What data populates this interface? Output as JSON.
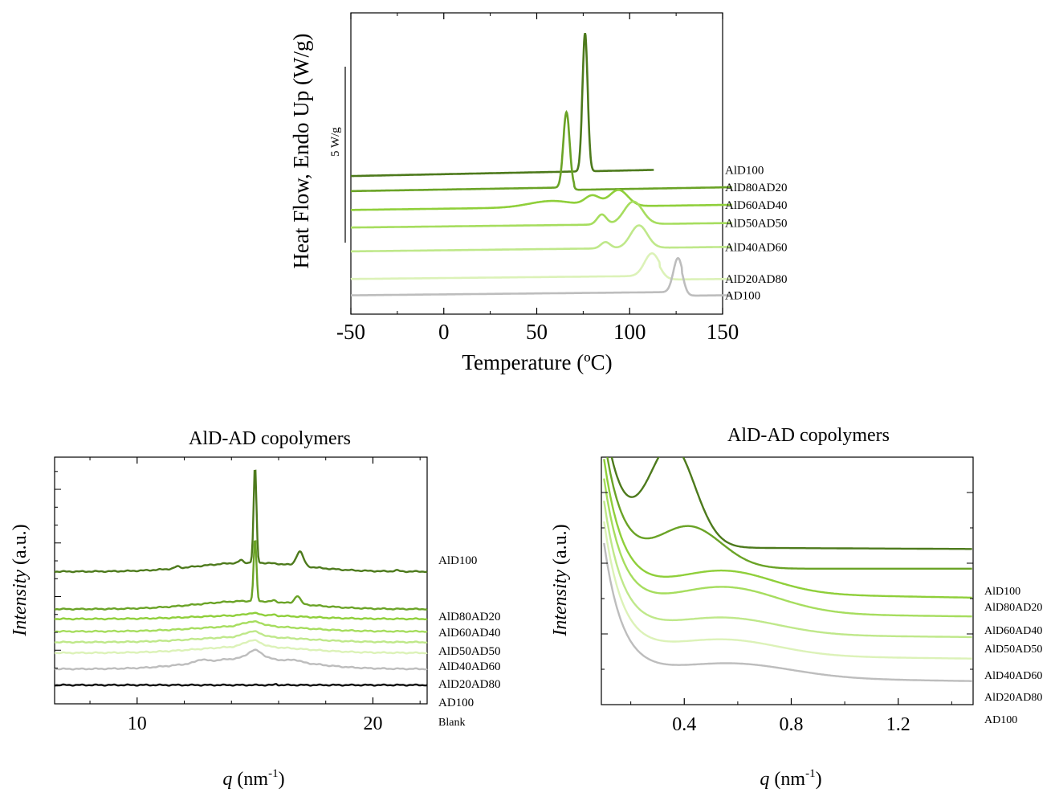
{
  "colors": {
    "AlD100": "#4d7a1c",
    "AlD80AD20": "#6aa326",
    "AlD60AD40": "#8fcf3a",
    "AlD50AD50": "#a6dd5e",
    "AlD40AD60": "#bfe88a",
    "AlD20AD80": "#dcf2b8",
    "AD100": "#bdbdbd",
    "Blank": "#111111"
  },
  "chart_data": [
    {
      "type": "line",
      "id": "dsc",
      "xlabel": "Temperature (ºC)",
      "ylabel": "Heat Flow, Endo Up (W/g)",
      "xlim": [
        -50,
        150
      ],
      "xticks": [
        -50,
        0,
        50,
        100,
        150
      ],
      "scale_bar_label": "5 W/g",
      "legend_placement": "right-of-curves",
      "series": [
        {
          "name": "AlD100",
          "baseline": 1.0,
          "slope": 0.6,
          "xmax": 113,
          "peaks": [
            [
              76,
              11.0,
              1.4
            ]
          ],
          "step": [
            80,
            0.0
          ]
        },
        {
          "name": "AlD80AD20",
          "baseline": -0.2,
          "slope": 0.5,
          "xmax": 155,
          "peaks": [
            [
              66,
              6.0,
              1.7
            ]
          ],
          "step": [
            70,
            0.2
          ]
        },
        {
          "name": "AlD60AD40",
          "baseline": -1.7,
          "slope": 0.4,
          "xmax": 155,
          "peaks": [
            [
              58,
              0.5,
              12
            ],
            [
              80,
              0.8,
              4
            ],
            [
              94,
              1.3,
              5
            ]
          ],
          "step": [
            98,
            0.0
          ]
        },
        {
          "name": "AlD50AD50",
          "baseline": -3.1,
          "slope": 0.35,
          "xmax": 155,
          "peaks": [
            [
              85,
              0.8,
              2.5
            ],
            [
              102,
              1.8,
              5
            ]
          ],
          "step": [
            107,
            0.0
          ]
        },
        {
          "name": "AlD40AD60",
          "baseline": -5.0,
          "slope": 0.35,
          "xmax": 155,
          "peaks": [
            [
              87,
              0.5,
              2.5
            ],
            [
              105,
              1.8,
              4.5
            ]
          ],
          "step": [
            110,
            0.0
          ]
        },
        {
          "name": "AlD20AD80",
          "baseline": -7.2,
          "slope": 0.3,
          "xmax": 155,
          "peaks": [
            [
              112,
              1.8,
              4
            ]
          ],
          "step": [
            116,
            0.3
          ]
        },
        {
          "name": "AD100",
          "baseline": -8.5,
          "slope": 0.3,
          "xmax": 155,
          "peaks": [
            [
              126,
              2.7,
              2.5
            ]
          ],
          "step": [
            128,
            0.3
          ]
        }
      ]
    },
    {
      "type": "line",
      "id": "waxs",
      "title": "AlD-AD copolymers",
      "xlabel_italic": "q",
      "xlabel_rest": " (nm",
      "xlabel_sup": "-1",
      "xlabel_end": ")",
      "ylabel_italic": "Intensity",
      "ylabel_rest": " (a.u.)",
      "xlim": [
        6.5,
        22.3
      ],
      "xticks": [
        10,
        20
      ],
      "series": [
        {
          "name": "AlD100",
          "offset": 7.4,
          "peaks": [
            [
              15.0,
              5.4,
              0.06
            ],
            [
              16.9,
              0.8,
              0.15
            ],
            [
              14.4,
              0.15,
              0.08
            ],
            [
              11.7,
              0.1,
              0.1
            ],
            [
              21.0,
              0.06,
              0.1
            ]
          ],
          "rise": 0.5
        },
        {
          "name": "AlD80AD20",
          "offset": 5.3,
          "peaks": [
            [
              15.0,
              3.5,
              0.06
            ],
            [
              16.8,
              0.45,
              0.12
            ],
            [
              15.8,
              0.08,
              0.08
            ]
          ],
          "rise": 0.45
        },
        {
          "name": "AlD60AD40",
          "offset": 4.75,
          "peaks": [
            [
              14.9,
              0.12,
              0.3
            ],
            [
              15.8,
              0.05,
              0.1
            ]
          ],
          "rise": 0.2
        },
        {
          "name": "AlD50AD50",
          "offset": 4.05,
          "peaks": [
            [
              14.9,
              0.25,
              0.4
            ]
          ],
          "rise": 0.3
        },
        {
          "name": "AlD40AD60",
          "offset": 3.45,
          "peaks": [
            [
              14.9,
              0.3,
              0.35
            ]
          ],
          "rise": 0.3
        },
        {
          "name": "AlD20AD80",
          "offset": 2.85,
          "peaks": [
            [
              14.9,
              0.35,
              0.35
            ]
          ],
          "rise": 0.35
        },
        {
          "name": "AD100",
          "offset": 1.95,
          "peaks": [
            [
              15.0,
              0.45,
              0.3
            ],
            [
              12.7,
              0.15,
              0.2
            ],
            [
              16.7,
              0.1,
              0.2
            ]
          ],
          "rise": 0.6
        },
        {
          "name": "Blank",
          "offset": 1.05,
          "peaks": [
            [
              15.9,
              0.06,
              0.05
            ]
          ],
          "rise": 0.0
        }
      ]
    },
    {
      "type": "line",
      "id": "saxs",
      "title": "AlD-AD copolymers",
      "xlabel_italic": "q",
      "xlabel_rest": " (nm",
      "xlabel_sup": "-1",
      "xlabel_end": ")",
      "ylabel_italic": "Intensity",
      "ylabel_rest": " (a.u.)",
      "xlim": [
        0.09,
        1.48
      ],
      "xticks": [
        0.4,
        0.8,
        1.2
      ],
      "series": [
        {
          "name": "AlD100",
          "offset": 8.4,
          "end_drop": 0.1,
          "peak": [
            0.355,
            5.3,
            0.085
          ],
          "decay": [
            7.0,
            0.07
          ]
        },
        {
          "name": "AlD80AD20",
          "offset": 7.25,
          "end_drop": 0.0,
          "peak": [
            0.42,
            2.2,
            0.12
          ],
          "decay": [
            7.0,
            0.07
          ]
        },
        {
          "name": "AlD60AD40",
          "offset": 6.05,
          "end_drop": 0.35,
          "peak": [
            0.55,
            1.2,
            0.18
          ],
          "decay": [
            7.0,
            0.07
          ]
        },
        {
          "name": "AlD50AD50",
          "offset": 4.95,
          "end_drop": 0.25,
          "peak": [
            0.55,
            1.4,
            0.2
          ],
          "decay": [
            7.0,
            0.07
          ]
        },
        {
          "name": "AlD40AD60",
          "offset": 3.8,
          "end_drop": 0.2,
          "peak": [
            0.55,
            0.9,
            0.2
          ],
          "decay": [
            7.0,
            0.07
          ]
        },
        {
          "name": "AlD20AD80",
          "offset": 2.7,
          "end_drop": 0.25,
          "peak": [
            0.55,
            0.85,
            0.2
          ],
          "decay": [
            7.0,
            0.07
          ]
        },
        {
          "name": "AD100",
          "offset": 1.55,
          "end_drop": 0.3,
          "peak": [
            0.58,
            0.75,
            0.22
          ],
          "decay": [
            7.0,
            0.07
          ]
        }
      ]
    }
  ]
}
